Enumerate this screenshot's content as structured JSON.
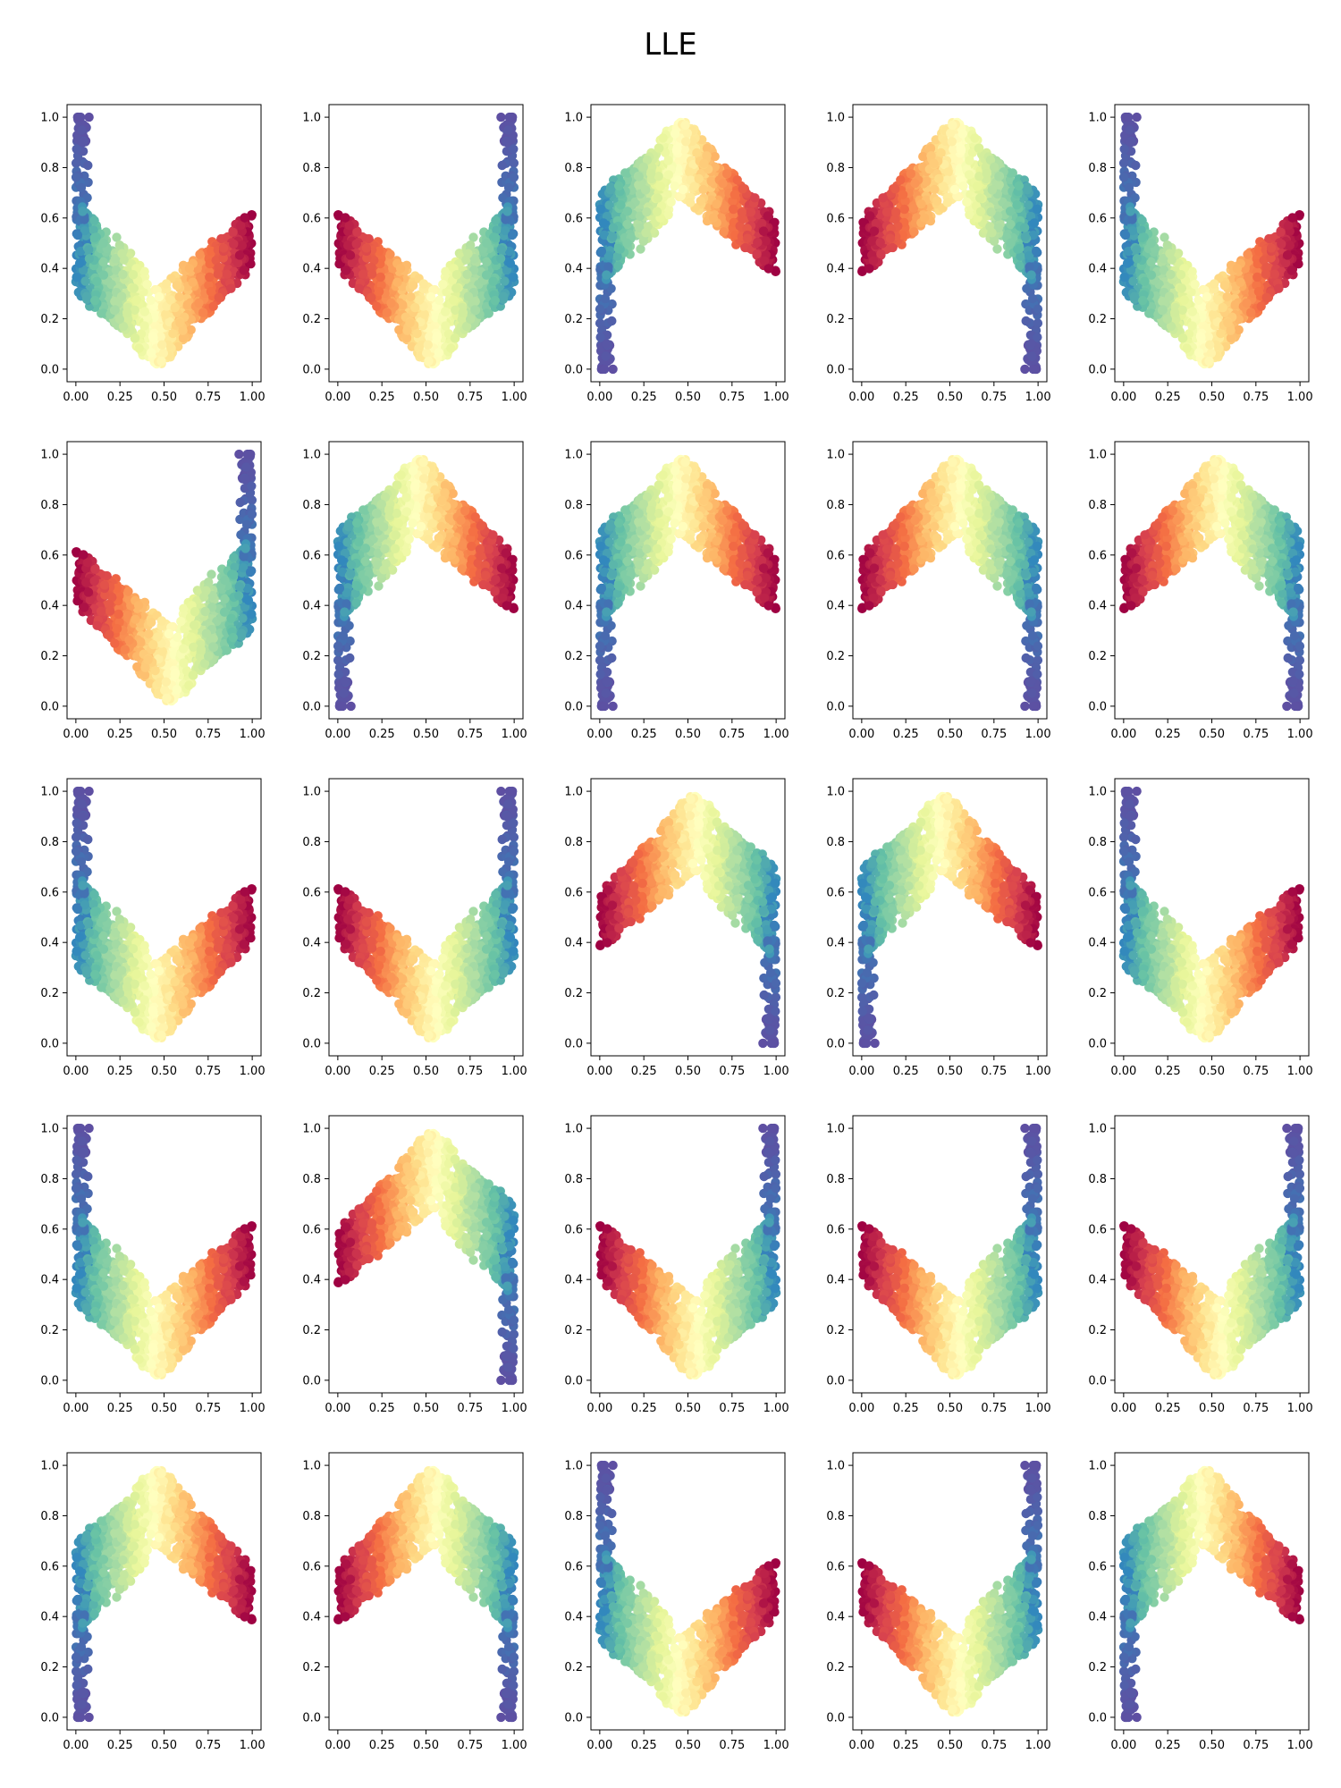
{
  "figure": {
    "title": "LLE"
  },
  "chart_data": {
    "type": "scatter",
    "layout": {
      "rows": 5,
      "cols": 5
    },
    "colormap": "Spectral (point color encodes position along the manifold)",
    "colormap_stops": [
      "#5e4fa2",
      "#3288bd",
      "#66c2a5",
      "#abdda4",
      "#e6f598",
      "#ffffbf",
      "#fee08b",
      "#fdae61",
      "#f46d43",
      "#d53e4f",
      "#9e0142"
    ],
    "point_count_per_panel": 1000,
    "xlim": [
      -0.05,
      1.05
    ],
    "ylim": [
      -0.05,
      1.05
    ],
    "xticks": [
      "0.00",
      "0.25",
      "0.50",
      "0.75",
      "1.00"
    ],
    "yticks": [
      "0.0",
      "0.2",
      "0.4",
      "0.6",
      "0.8",
      "1.0"
    ],
    "base_curve": {
      "description": "valley-shaped band from (0, 0.5–1.0) down to min near (0.47, 0) and up to (1, 0.68)",
      "points": [
        [
          0.0,
          0.52
        ],
        [
          0.05,
          0.45
        ],
        [
          0.1,
          0.36
        ],
        [
          0.2,
          0.25
        ],
        [
          0.3,
          0.14
        ],
        [
          0.4,
          0.06
        ],
        [
          0.47,
          0.02
        ],
        [
          0.55,
          0.1
        ],
        [
          0.65,
          0.27
        ],
        [
          0.8,
          0.42
        ],
        [
          0.9,
          0.54
        ],
        [
          1.0,
          0.65
        ]
      ]
    },
    "panels": [
      {
        "flip_x": false,
        "flip_y": false
      },
      {
        "flip_x": true,
        "flip_y": false
      },
      {
        "flip_x": false,
        "flip_y": true
      },
      {
        "flip_x": true,
        "flip_y": true
      },
      {
        "flip_x": false,
        "flip_y": false
      },
      {
        "flip_x": true,
        "flip_y": false
      },
      {
        "flip_x": false,
        "flip_y": true
      },
      {
        "flip_x": false,
        "flip_y": true
      },
      {
        "flip_x": true,
        "flip_y": true
      },
      {
        "flip_x": true,
        "flip_y": true
      },
      {
        "flip_x": false,
        "flip_y": false
      },
      {
        "flip_x": true,
        "flip_y": false
      },
      {
        "flip_x": true,
        "flip_y": true
      },
      {
        "flip_x": false,
        "flip_y": true
      },
      {
        "flip_x": false,
        "flip_y": false
      },
      {
        "flip_x": false,
        "flip_y": false
      },
      {
        "flip_x": true,
        "flip_y": true
      },
      {
        "flip_x": true,
        "flip_y": false
      },
      {
        "flip_x": true,
        "flip_y": false
      },
      {
        "flip_x": true,
        "flip_y": false
      },
      {
        "flip_x": false,
        "flip_y": true
      },
      {
        "flip_x": true,
        "flip_y": true
      },
      {
        "flip_x": false,
        "flip_y": false
      },
      {
        "flip_x": true,
        "flip_y": false
      },
      {
        "flip_x": false,
        "flip_y": true
      }
    ]
  }
}
